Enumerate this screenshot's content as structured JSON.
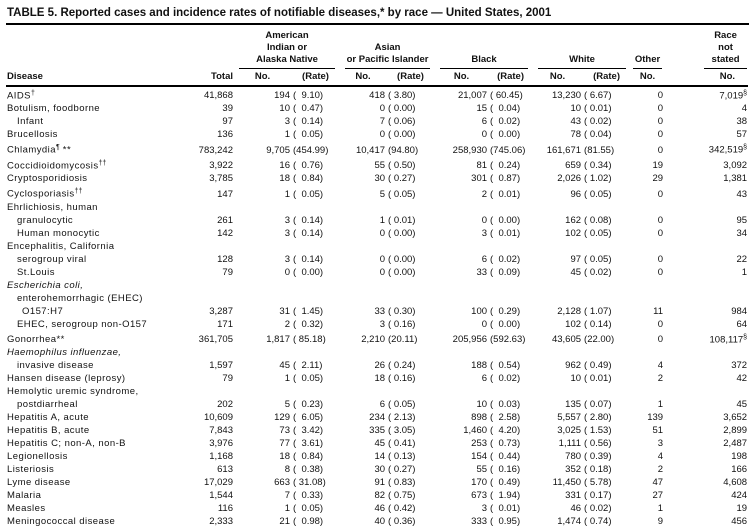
{
  "title": "TABLE 5. Reported cases and incidence rates of notifiable diseases,* by race — United States, 2001",
  "header": {
    "disease": "Disease",
    "total": "Total",
    "groups": [
      {
        "lines": [
          "American",
          "Indian or",
          "Alaska Native"
        ],
        "subs": [
          "No.",
          "(Rate)"
        ]
      },
      {
        "lines": [
          "Asian",
          "or Pacific Islander"
        ],
        "subs": [
          "No.",
          "(Rate)"
        ]
      },
      {
        "lines": [
          "Black"
        ],
        "subs": [
          "No.",
          "(Rate)"
        ]
      },
      {
        "lines": [
          "White"
        ],
        "subs": [
          "No.",
          "(Rate)"
        ]
      },
      {
        "lines": [
          "Other"
        ],
        "subs": [
          "No."
        ]
      },
      {
        "lines": [
          "Race",
          "not",
          "stated"
        ],
        "subs": [
          "No."
        ]
      }
    ]
  },
  "rows": [
    {
      "label": "AIDS",
      "sup": "†",
      "indent": 0,
      "values": [
        "41,868",
        "194",
        "(  9.10)",
        "418",
        "( 3.80)",
        "21,007",
        "( 60.45)",
        "13,230",
        "( 6.67)",
        "0",
        "7,019§"
      ]
    },
    {
      "label": "Botulism, foodborne",
      "indent": 0,
      "values": [
        "39",
        "10",
        "(  0.47)",
        "0",
        "( 0.00)",
        "15",
        "(  0.04)",
        "10",
        "( 0.01)",
        "0",
        "4"
      ]
    },
    {
      "label": "Infant",
      "indent": 1,
      "values": [
        "97",
        "3",
        "(  0.14)",
        "7",
        "( 0.06)",
        "6",
        "(  0.02)",
        "43",
        "( 0.02)",
        "0",
        "38"
      ]
    },
    {
      "label": "Brucellosis",
      "indent": 0,
      "values": [
        "136",
        "1",
        "(  0.05)",
        "0",
        "( 0.00)",
        "0",
        "(  0.00)",
        "78",
        "( 0.04)",
        "0",
        "57"
      ]
    },
    {
      "label": "Chlamydia",
      "sup": "¶",
      "tail": " **",
      "indent": 0,
      "values": [
        "783,242",
        "9,705",
        "(454.99)",
        "10,417",
        "(94.80)",
        "258,930",
        "(745.06)",
        "161,671",
        "(81.55)",
        "0",
        "342,519§"
      ]
    },
    {
      "label": "Coccidioidomycosis",
      "sup": "††",
      "indent": 0,
      "values": [
        "3,922",
        "16",
        "(  0.76)",
        "55",
        "( 0.50)",
        "81",
        "(  0.24)",
        "659",
        "( 0.34)",
        "19",
        "3,092"
      ]
    },
    {
      "label": "Cryptosporidiosis",
      "indent": 0,
      "values": [
        "3,785",
        "18",
        "(  0.84)",
        "30",
        "( 0.27)",
        "301",
        "(  0.87)",
        "2,026",
        "( 1.02)",
        "29",
        "1,381"
      ]
    },
    {
      "label": "Cyclosporiasis",
      "sup": "††",
      "indent": 0,
      "values": [
        "147",
        "1",
        "(  0.05)",
        "5",
        "( 0.05)",
        "2",
        "(  0.01)",
        "96",
        "( 0.05)",
        "0",
        "43"
      ]
    },
    {
      "label": "Ehrlichiosis, human",
      "indent": 0,
      "values": []
    },
    {
      "label": "granulocytic",
      "indent": 1,
      "values": [
        "261",
        "3",
        "(  0.14)",
        "1",
        "( 0.01)",
        "0",
        "(  0.00)",
        "162",
        "( 0.08)",
        "0",
        "95"
      ]
    },
    {
      "label": "Human monocytic",
      "indent": 1,
      "values": [
        "142",
        "3",
        "(  0.14)",
        "0",
        "( 0.00)",
        "3",
        "(  0.01)",
        "102",
        "( 0.05)",
        "0",
        "34"
      ]
    },
    {
      "label": "Encephalitis, California",
      "indent": 0,
      "values": []
    },
    {
      "label": "serogroup viral",
      "indent": 1,
      "values": [
        "128",
        "3",
        "(  0.14)",
        "0",
        "( 0.00)",
        "6",
        "(  0.02)",
        "97",
        "( 0.05)",
        "0",
        "22"
      ]
    },
    {
      "label": "St.Louis",
      "indent": 1,
      "values": [
        "79",
        "0",
        "(  0.00)",
        "0",
        "( 0.00)",
        "33",
        "(  0.09)",
        "45",
        "( 0.02)",
        "0",
        "1"
      ]
    },
    {
      "label": "Escherichia coli,",
      "italic": true,
      "indent": 0,
      "values": []
    },
    {
      "label": "enterohemorrhagic (EHEC)",
      "indent": 1,
      "values": []
    },
    {
      "label": "O157:H7",
      "indent": 2,
      "values": [
        "3,287",
        "31",
        "(  1.45)",
        "33",
        "( 0.30)",
        "100",
        "(  0.29)",
        "2,128",
        "( 1.07)",
        "11",
        "984"
      ]
    },
    {
      "label": "EHEC, serogroup non-O157",
      "indent": 1,
      "values": [
        "171",
        "2",
        "(  0.32)",
        "3",
        "( 0.16)",
        "0",
        "(  0.00)",
        "102",
        "( 0.14)",
        "0",
        "64"
      ]
    },
    {
      "label": "Gonorrhea**",
      "indent": 0,
      "values": [
        "361,705",
        "1,817",
        "( 85.18)",
        "2,210",
        "(20.11)",
        "205,956",
        "(592.63)",
        "43,605",
        "(22.00)",
        "0",
        "108,117§"
      ]
    },
    {
      "label": "Haemophilus influenzae,",
      "italic": true,
      "indent": 0,
      "values": []
    },
    {
      "label": "invasive disease",
      "indent": 1,
      "values": [
        "1,597",
        "45",
        "(  2.11)",
        "26",
        "( 0.24)",
        "188",
        "(  0.54)",
        "962",
        "( 0.49)",
        "4",
        "372"
      ]
    },
    {
      "label": "Hansen disease (leprosy)",
      "indent": 0,
      "values": [
        "79",
        "1",
        "(  0.05)",
        "18",
        "( 0.16)",
        "6",
        "(  0.02)",
        "10",
        "( 0.01)",
        "2",
        "42"
      ]
    },
    {
      "label": "Hemolytic uremic syndrome,",
      "indent": 0,
      "values": []
    },
    {
      "label": "postdiarrheal",
      "indent": 1,
      "values": [
        "202",
        "5",
        "(  0.23)",
        "6",
        "( 0.05)",
        "10",
        "(  0.03)",
        "135",
        "( 0.07)",
        "1",
        "45"
      ]
    },
    {
      "label": "Hepatitis A, acute",
      "indent": 0,
      "values": [
        "10,609",
        "129",
        "(  6.05)",
        "234",
        "( 2.13)",
        "898",
        "(  2.58)",
        "5,557",
        "( 2.80)",
        "139",
        "3,652"
      ]
    },
    {
      "label": "Hepatitis B, acute",
      "indent": 0,
      "values": [
        "7,843",
        "73",
        "(  3.42)",
        "335",
        "( 3.05)",
        "1,460",
        "(  4.20)",
        "3,025",
        "( 1.53)",
        "51",
        "2,899"
      ]
    },
    {
      "label": "Hepatitis C; non-A, non-B",
      "indent": 0,
      "values": [
        "3,976",
        "77",
        "(  3.61)",
        "45",
        "( 0.41)",
        "253",
        "(  0.73)",
        "1,111",
        "( 0.56)",
        "3",
        "2,487"
      ]
    },
    {
      "label": "Legionellosis",
      "indent": 0,
      "values": [
        "1,168",
        "18",
        "(  0.84)",
        "14",
        "( 0.13)",
        "154",
        "(  0.44)",
        "780",
        "( 0.39)",
        "4",
        "198"
      ]
    },
    {
      "label": "Listeriosis",
      "indent": 0,
      "values": [
        "613",
        "8",
        "(  0.38)",
        "30",
        "( 0.27)",
        "55",
        "(  0.16)",
        "352",
        "( 0.18)",
        "2",
        "166"
      ]
    },
    {
      "label": "Lyme disease",
      "indent": 0,
      "values": [
        "17,029",
        "663",
        "( 31.08)",
        "91",
        "( 0.83)",
        "170",
        "(  0.49)",
        "11,450",
        "( 5.78)",
        "47",
        "4,608"
      ]
    },
    {
      "label": "Malaria",
      "indent": 0,
      "values": [
        "1,544",
        "7",
        "(  0.33)",
        "82",
        "( 0.75)",
        "673",
        "(  1.94)",
        "331",
        "( 0.17)",
        "27",
        "424"
      ]
    },
    {
      "label": "Measles",
      "indent": 0,
      "values": [
        "116",
        "1",
        "(  0.05)",
        "46",
        "( 0.42)",
        "3",
        "(  0.01)",
        "46",
        "( 0.02)",
        "1",
        "19"
      ]
    },
    {
      "label": "Meningococcal disease",
      "indent": 0,
      "values": [
        "2,333",
        "21",
        "(  0.98)",
        "40",
        "( 0.36)",
        "333",
        "(  0.95)",
        "1,474",
        "( 0.74)",
        "9",
        "456"
      ]
    }
  ]
}
